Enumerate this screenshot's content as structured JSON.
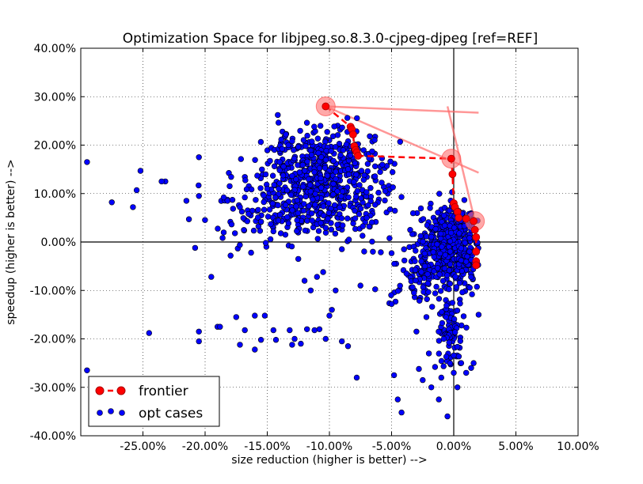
{
  "chart_data": {
    "type": "scatter",
    "title": "Optimization Space for libjpeg.so.8.3.0-cjpeg-djpeg [ref=REF]",
    "xlabel": "size reduction (higher is better) -->",
    "ylabel": "speedup (higher is better) -->",
    "xlim": [
      -0.3,
      0.1
    ],
    "ylim": [
      -0.4,
      0.4
    ],
    "xticks": [
      -0.25,
      -0.2,
      -0.15,
      -0.1,
      -0.05,
      0.0,
      0.05,
      0.1
    ],
    "xtick_labels": [
      "-25.00%",
      "-20.00%",
      "-15.00%",
      "-10.00%",
      "-5.00%",
      "0.00%",
      "5.00%",
      "10.00%"
    ],
    "yticks": [
      -0.4,
      -0.3,
      -0.2,
      -0.1,
      0.0,
      0.1,
      0.2,
      0.3,
      0.4
    ],
    "ytick_labels": [
      "-40.00%",
      "-30.00%",
      "-20.00%",
      "-10.00%",
      "0.00%",
      "10.00%",
      "20.00%",
      "30.00%",
      "40.00%"
    ],
    "grid": true,
    "legend_position": "bottom-left",
    "legend": [
      "frontier",
      "opt cases"
    ],
    "opt_cases": {
      "color": "#0000ff",
      "points": [
        [
          -0.295,
          0.165
        ],
        [
          -0.295,
          -0.265
        ],
        [
          -0.275,
          0.082
        ],
        [
          -0.258,
          0.072
        ],
        [
          -0.255,
          0.107
        ],
        [
          -0.252,
          0.147
        ],
        [
          -0.245,
          -0.188
        ],
        [
          -0.232,
          0.125
        ],
        [
          -0.235,
          0.125
        ],
        [
          -0.215,
          0.085
        ],
        [
          -0.213,
          0.047
        ],
        [
          -0.208,
          -0.012
        ],
        [
          -0.205,
          0.175
        ],
        [
          -0.205,
          0.095
        ],
        [
          -0.205,
          -0.205
        ],
        [
          -0.205,
          -0.185
        ],
        [
          -0.195,
          -0.072
        ],
        [
          -0.19,
          -0.175
        ],
        [
          -0.188,
          -0.175
        ],
        [
          -0.185,
          0.092
        ],
        [
          -0.182,
          0.085
        ],
        [
          -0.178,
          0.087
        ],
        [
          -0.175,
          -0.155
        ],
        [
          -0.172,
          0.072
        ],
        [
          -0.172,
          -0.212
        ],
        [
          -0.168,
          0.092
        ],
        [
          -0.168,
          -0.182
        ],
        [
          -0.165,
          0.058
        ],
        [
          -0.163,
          -0.022
        ],
        [
          -0.16,
          -0.152
        ],
        [
          -0.16,
          -0.222
        ],
        [
          -0.158,
          0.137
        ],
        [
          -0.155,
          0.042
        ],
        [
          -0.155,
          -0.202
        ],
        [
          -0.152,
          -0.152
        ],
        [
          -0.15,
          0.11
        ],
        [
          -0.148,
          0.067
        ],
        [
          -0.145,
          0.022
        ],
        [
          -0.145,
          -0.182
        ],
        [
          -0.143,
          -0.202
        ],
        [
          -0.14,
          0.148
        ],
        [
          -0.14,
          0.165
        ],
        [
          -0.138,
          0.192
        ],
        [
          -0.135,
          0.222
        ],
        [
          -0.133,
          0.2
        ],
        [
          -0.13,
          0.208
        ],
        [
          -0.132,
          -0.182
        ],
        [
          -0.13,
          -0.212
        ],
        [
          -0.128,
          -0.2
        ],
        [
          -0.125,
          -0.035
        ],
        [
          -0.123,
          -0.21
        ],
        [
          -0.12,
          -0.08
        ],
        [
          -0.118,
          -0.18
        ],
        [
          -0.115,
          -0.1
        ],
        [
          -0.112,
          -0.182
        ],
        [
          -0.11,
          -0.072
        ],
        [
          -0.108,
          -0.18
        ],
        [
          -0.105,
          -0.062
        ],
        [
          -0.103,
          -0.2
        ],
        [
          -0.1,
          -0.152
        ],
        [
          -0.098,
          -0.14
        ],
        [
          -0.095,
          -0.1
        ],
        [
          -0.09,
          -0.205
        ],
        [
          -0.085,
          -0.215
        ],
        [
          -0.078,
          -0.28
        ],
        [
          -0.075,
          -0.09
        ],
        [
          -0.07,
          0.05
        ],
        [
          -0.068,
          0.032
        ],
        [
          -0.065,
          -0.02
        ],
        [
          -0.055,
          0.105
        ],
        [
          -0.05,
          -0.128
        ],
        [
          -0.048,
          -0.275
        ],
        [
          -0.045,
          -0.325
        ],
        [
          -0.042,
          -0.352
        ],
        [
          -0.04,
          -0.015
        ],
        [
          -0.038,
          -0.065
        ],
        [
          -0.035,
          0.025
        ],
        [
          -0.032,
          -0.105
        ],
        [
          -0.03,
          -0.185
        ],
        [
          -0.028,
          -0.262
        ],
        [
          -0.025,
          -0.285
        ],
        [
          -0.022,
          -0.155
        ],
        [
          -0.02,
          -0.23
        ],
        [
          -0.018,
          -0.3
        ],
        [
          -0.015,
          -0.258
        ],
        [
          -0.012,
          -0.325
        ],
        [
          -0.01,
          -0.28
        ],
        [
          -0.008,
          -0.2
        ],
        [
          -0.005,
          -0.36
        ],
        [
          -0.003,
          -0.25
        ],
        [
          0.0,
          -0.27
        ],
        [
          0.003,
          -0.3
        ],
        [
          0.006,
          -0.25
        ],
        [
          0.01,
          -0.27
        ],
        [
          0.014,
          -0.26
        ],
        [
          0.016,
          -0.25
        ],
        [
          0.02,
          -0.15
        ]
      ],
      "clusters": [
        {
          "cx": -0.105,
          "cy": 0.12,
          "sx": 0.025,
          "sy": 0.055,
          "n": 650
        },
        {
          "cx": -0.003,
          "cy": 0.0,
          "sx": 0.012,
          "sy": 0.035,
          "n": 520
        },
        {
          "cx": -0.015,
          "cy": -0.07,
          "sx": 0.022,
          "sy": 0.03,
          "n": 110
        },
        {
          "cx": -0.003,
          "cy": -0.18,
          "sx": 0.005,
          "sy": 0.04,
          "n": 80
        },
        {
          "cx": -0.16,
          "cy": 0.06,
          "sx": 0.022,
          "sy": 0.04,
          "n": 60
        }
      ]
    },
    "frontier": {
      "color": "#ff0000",
      "points": [
        [
          -0.103,
          0.28
        ],
        [
          -0.083,
          0.238
        ],
        [
          -0.082,
          0.233
        ],
        [
          -0.081,
          0.222
        ],
        [
          -0.08,
          0.198
        ],
        [
          -0.079,
          0.19
        ],
        [
          -0.078,
          0.185
        ],
        [
          -0.077,
          0.178
        ],
        [
          -0.002,
          0.172
        ],
        [
          -0.001,
          0.14
        ],
        [
          0.0,
          0.08
        ],
        [
          0.001,
          0.072
        ],
        [
          0.003,
          0.062
        ],
        [
          0.004,
          0.05
        ],
        [
          0.01,
          0.048
        ],
        [
          0.016,
          0.043
        ],
        [
          0.017,
          0.025
        ],
        [
          0.018,
          0.01
        ],
        [
          0.018,
          -0.02
        ],
        [
          0.018,
          -0.04
        ],
        [
          0.018,
          -0.048
        ]
      ],
      "highlights": [
        [
          -0.103,
          0.28
        ],
        [
          -0.002,
          0.172
        ],
        [
          0.017,
          0.043
        ]
      ]
    },
    "ref_lines": [
      [
        [
          -0.103,
          0.28
        ],
        [
          0.02,
          0.267
        ]
      ],
      [
        [
          -0.103,
          0.28
        ],
        [
          0.02,
          0.143
        ]
      ],
      [
        [
          -0.005,
          0.28
        ],
        [
          0.017,
          0.043
        ]
      ]
    ]
  }
}
